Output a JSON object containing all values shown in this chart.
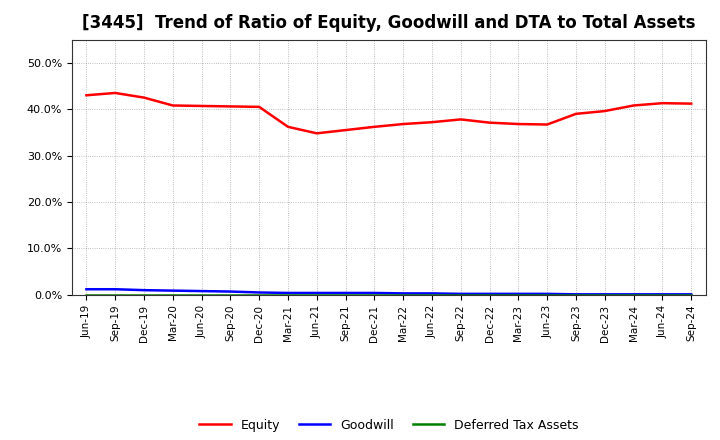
{
  "title": "[3445]  Trend of Ratio of Equity, Goodwill and DTA to Total Assets",
  "x_labels": [
    "Jun-19",
    "Sep-19",
    "Dec-19",
    "Mar-20",
    "Jun-20",
    "Sep-20",
    "Dec-20",
    "Mar-21",
    "Jun-21",
    "Sep-21",
    "Dec-21",
    "Mar-22",
    "Jun-22",
    "Sep-22",
    "Dec-22",
    "Mar-23",
    "Jun-23",
    "Sep-23",
    "Dec-23",
    "Mar-24",
    "Jun-24",
    "Sep-24"
  ],
  "equity": [
    0.43,
    0.435,
    0.425,
    0.408,
    0.407,
    0.406,
    0.405,
    0.362,
    0.348,
    0.355,
    0.362,
    0.368,
    0.372,
    0.378,
    0.371,
    0.368,
    0.367,
    0.39,
    0.396,
    0.408,
    0.413,
    0.412
  ],
  "goodwill": [
    0.012,
    0.012,
    0.01,
    0.009,
    0.008,
    0.007,
    0.005,
    0.004,
    0.004,
    0.004,
    0.004,
    0.003,
    0.003,
    0.002,
    0.002,
    0.002,
    0.002,
    0.001,
    0.001,
    0.001,
    0.001,
    0.001
  ],
  "dta": [
    0.0,
    0.0,
    0.0,
    0.0,
    0.0,
    0.0,
    0.0,
    0.0,
    0.0,
    0.0,
    0.0,
    0.0,
    0.0,
    0.0,
    0.0,
    0.0,
    0.0,
    0.0,
    0.0,
    0.0,
    0.0,
    0.0
  ],
  "equity_color": "#FF0000",
  "goodwill_color": "#0000FF",
  "dta_color": "#008000",
  "ylim": [
    0.0,
    0.55
  ],
  "yticks": [
    0.0,
    0.1,
    0.2,
    0.3,
    0.4,
    0.5
  ],
  "background_color": "#FFFFFF",
  "grid_color": "#888888",
  "title_fontsize": 12,
  "legend_labels": [
    "Equity",
    "Goodwill",
    "Deferred Tax Assets"
  ]
}
